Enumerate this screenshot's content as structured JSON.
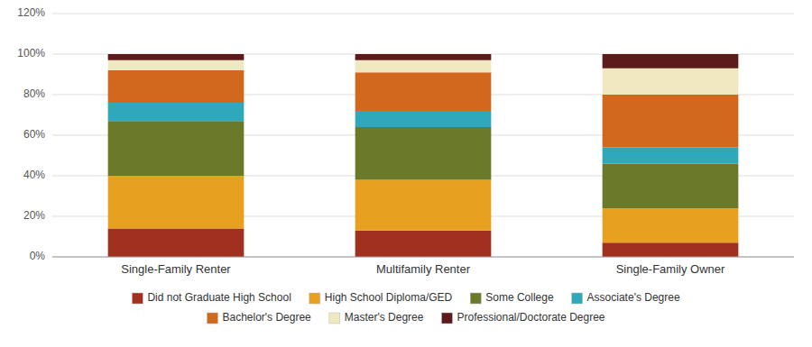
{
  "chart_data": {
    "type": "bar",
    "stacked": true,
    "categories": [
      "Single-Family Renter",
      "Multifamily Renter",
      "Single-Family Owner"
    ],
    "series": [
      {
        "name": "Did not Graduate High School",
        "color": "#A0311E",
        "values": [
          14,
          13,
          7
        ]
      },
      {
        "name": "High School Diploma/GED",
        "color": "#E8A020",
        "values": [
          26,
          25,
          17
        ]
      },
      {
        "name": "Some College",
        "color": "#6B7A2A",
        "values": [
          27,
          26,
          22
        ]
      },
      {
        "name": "Associate's Degree",
        "color": "#2EA8BA",
        "values": [
          9,
          8,
          8
        ]
      },
      {
        "name": "Bachelor's Degree",
        "color": "#D2671E",
        "values": [
          16,
          19,
          26
        ]
      },
      {
        "name": "Master's Degree",
        "color": "#F0E8C0",
        "values": [
          5,
          6,
          13
        ]
      },
      {
        "name": "Professional/Doctorate Degree",
        "color": "#5C1A1A",
        "values": [
          3,
          3,
          7
        ]
      }
    ],
    "ylim": [
      0,
      120
    ],
    "yticks": [
      {
        "value": 0,
        "label": "0%"
      },
      {
        "value": 20,
        "label": "20%"
      },
      {
        "value": 40,
        "label": "40%"
      },
      {
        "value": 60,
        "label": "60%"
      },
      {
        "value": 80,
        "label": "80%"
      },
      {
        "value": 100,
        "label": "100%"
      },
      {
        "value": 120,
        "label": "120%"
      }
    ],
    "grid": true,
    "legend": "bottom"
  }
}
